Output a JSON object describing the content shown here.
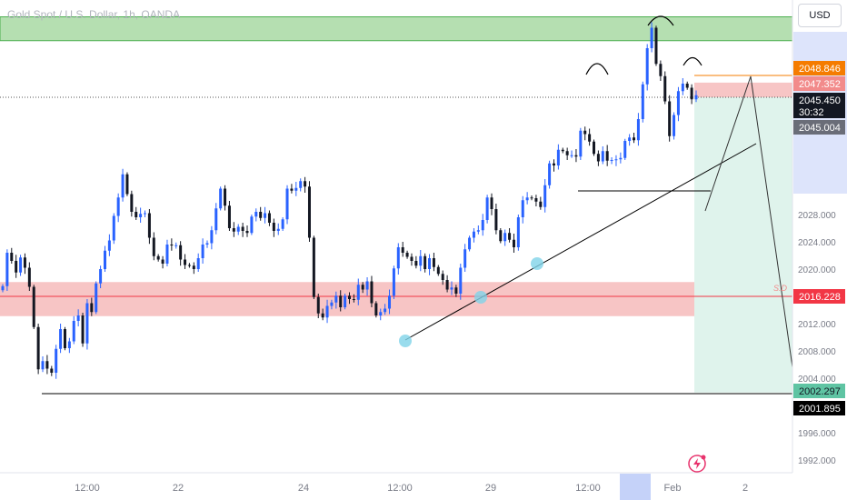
{
  "header": {
    "title": "Gold Spot / U.S. Dollar, 1h, OANDA",
    "currency_label": "USD"
  },
  "chart_data": {
    "type": "candlestick",
    "title": "Gold Spot / U.S. Dollar, 1h, OANDA",
    "y_axis": {
      "ticks": [
        "2028.000",
        "2024.000",
        "2020.000",
        "2016.000",
        "2012.000",
        "2008.000",
        "2004.000",
        "1996.000",
        "1992.000"
      ],
      "range": [
        1990,
        2058
      ]
    },
    "x_axis": {
      "ticks": [
        "12:00",
        "22",
        "24",
        "12:00",
        "29",
        "12:00",
        "Feb",
        "2"
      ]
    },
    "price_labels": [
      {
        "value": "2048.846",
        "color": "#f57c00",
        "text_color": "#ffffff"
      },
      {
        "value": "2047.352",
        "color": "#f28b8b",
        "text_color": "#ffffff"
      },
      {
        "value": "2045.450",
        "color": "#131722",
        "text_color": "#ffffff"
      },
      {
        "value": "30:32",
        "color": "#131722",
        "text_color": "#ffffff"
      },
      {
        "value": "2045.004",
        "color": "#6a6d78",
        "text_color": "#ffffff"
      },
      {
        "value": "2016.228",
        "color": "#f23645",
        "text_color": "#ffffff"
      },
      {
        "value": "2002.297",
        "color": "#5fc4a3",
        "text_color": "#131722"
      },
      {
        "value": "2001.895",
        "color": "#000000",
        "text_color": "#ffffff"
      }
    ],
    "annotations": [
      {
        "text": "S.D",
        "kind": "zone-label"
      }
    ],
    "zones": [
      {
        "name": "supply-zone",
        "low": 2053.5,
        "high": 2057.0,
        "color": "#b5dfb1"
      },
      {
        "name": "demand-zone",
        "low": 2013.1,
        "high": 2018.1,
        "color": "#f7c5c5"
      },
      {
        "name": "stop-zone",
        "low": 2045.2,
        "high": 2047.35,
        "color": "#f7c5c5"
      },
      {
        "name": "target-zone",
        "low": 2001.9,
        "high": 2045.2,
        "color": "#dff3ec"
      }
    ],
    "candle_colors": {
      "up": "#2962ff",
      "down": "#131722"
    },
    "price_series": [
      2017.5,
      2022.4,
      2021.2,
      2019.5,
      2021.7,
      2020.2,
      2017.4,
      2011.5,
      2005.3,
      2006.5,
      2005.4,
      2004.8,
      2008.3,
      2011.2,
      2008.4,
      2009.4,
      2012.4,
      2013.2,
      2009.1,
      2015.0,
      2013.7,
      2017.9,
      2020.0,
      2022.7,
      2024.2,
      2027.8,
      2030.5,
      2033.9,
      2031.0,
      2028.4,
      2027.6,
      2028.1,
      2028.2,
      2024.6,
      2021.9,
      2021.4,
      2020.8,
      2023.6,
      2023.5,
      2023.5,
      2021.4,
      2020.6,
      2020.5,
      2020.0,
      2021.6,
      2023.6,
      2023.8,
      2025.7,
      2028.9,
      2031.8,
      2029.3,
      2026.0,
      2025.5,
      2026.2,
      2025.6,
      2025.3,
      2027.7,
      2028.4,
      2027.5,
      2028.2,
      2026.8,
      2025.6,
      2025.9,
      2027.3,
      2031.8,
      2031.5,
      2031.9,
      2032.9,
      2032.1,
      2024.6,
      2015.9,
      2013.5,
      2012.9,
      2014.6,
      2015.1,
      2016.1,
      2014.4,
      2016.1,
      2015.6,
      2015.5,
      2017.7,
      2017.0,
      2018.2,
      2015.0,
      2013.2,
      2013.7,
      2014.2,
      2016.1,
      2020.1,
      2023.2,
      2022.4,
      2021.8,
      2021.2,
      2020.5,
      2021.9,
      2020.0,
      2021.6,
      2020.3,
      2019.3,
      2018.4,
      2017.0,
      2017.3,
      2016.4,
      2020.2,
      2022.9,
      2024.6,
      2025.5,
      2025.7,
      2027.2,
      2030.5,
      2028.8,
      2025.7,
      2024.1,
      2025.3,
      2024.3,
      2023.2,
      2027.6,
      2030.1,
      2030.5,
      2030.4,
      2029.9,
      2029.1,
      2032.3,
      2035.5,
      2035.2,
      2037.5,
      2037.3,
      2036.7,
      2036.7,
      2036.5,
      2040.3,
      2039.8,
      2038.7,
      2036.9,
      2035.8,
      2037.3,
      2035.9,
      2036.0,
      2036.1,
      2036.3,
      2038.8,
      2039.3,
      2038.9,
      2042.0,
      2047.1,
      2052.4,
      2055.4,
      2050.1,
      2048.3,
      2044.6,
      2039.5,
      2042.6,
      2046.1,
      2047.2,
      2046.6,
      2044.9,
      2045.5
    ]
  }
}
